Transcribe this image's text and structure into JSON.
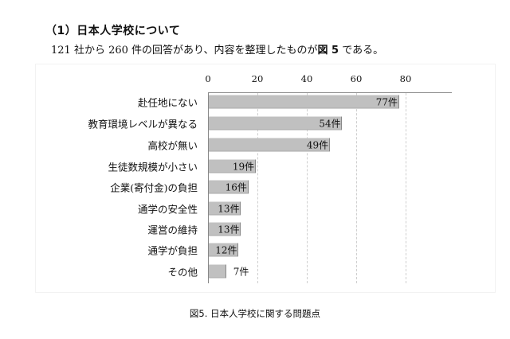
{
  "heading": "（1）日本人学校について",
  "intro": {
    "text_before": "121 社から 260 件の回答があり、内容を整理したものが",
    "figure_ref": "図 5",
    "text_after": " である。"
  },
  "caption": "図5.  日本人学校に関する問題点",
  "chart_data": {
    "type": "bar",
    "orientation": "horizontal",
    "title": "図5. 日本人学校に関する問題点",
    "xlabel": "",
    "ylabel": "",
    "xlim": [
      0,
      98
    ],
    "x_ticks": [
      "0",
      "20",
      "40",
      "60",
      "80"
    ],
    "x_axis_position": "top",
    "grid": true,
    "legend": null,
    "categories": [
      "赴任地にない",
      "教育環境レベルが異なる",
      "高校が無い",
      "生徒数規模が小さい",
      "企業(寄付金)の負担",
      "通学の安全性",
      "運営の維持",
      "通学が負担",
      "その他"
    ],
    "values": [
      77,
      54,
      49,
      19,
      16,
      13,
      13,
      12,
      7
    ],
    "value_labels": [
      "77件",
      "54件",
      "49件",
      "19件",
      "16件",
      "13件",
      "13件",
      "12件",
      "7件"
    ]
  }
}
